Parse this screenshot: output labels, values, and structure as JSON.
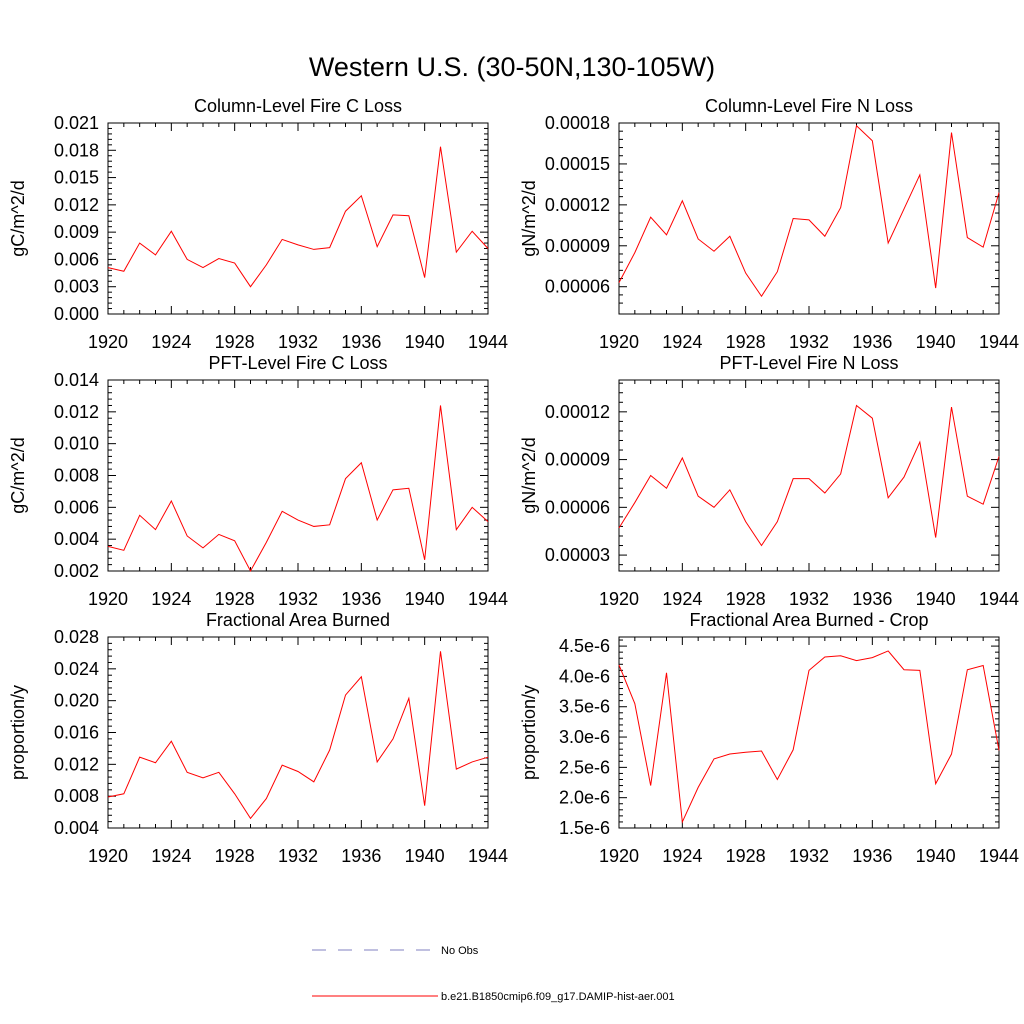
{
  "figure": {
    "title": "Western U.S. (30-50N,130-105W)"
  },
  "legend": {
    "items": [
      {
        "label": "No Obs",
        "color": "#8080c0",
        "dash": true
      },
      {
        "label": "b.e21.B1850cmip6.f09_g17.DAMIP-hist-aer.001",
        "color": "#ff0000",
        "dash": false
      }
    ]
  },
  "chart_data": [
    {
      "type": "line",
      "title": "Column-Level Fire C Loss",
      "ylabel": "gC/m^2/d",
      "xlabel": "",
      "xlim": [
        1920,
        1944
      ],
      "ylim": [
        0.0,
        0.021
      ],
      "xticks": [
        "1920",
        "1924",
        "1928",
        "1932",
        "1936",
        "1940",
        "1944"
      ],
      "yticks": [
        "0.000",
        "0.003",
        "0.006",
        "0.009",
        "0.012",
        "0.015",
        "0.018",
        "0.021"
      ],
      "x": [
        1920,
        1921,
        1922,
        1923,
        1924,
        1925,
        1926,
        1927,
        1928,
        1929,
        1930,
        1931,
        1932,
        1933,
        1934,
        1935,
        1936,
        1937,
        1938,
        1939,
        1940,
        1941,
        1942,
        1943,
        1944
      ],
      "series": [
        {
          "name": "b.e21.B1850cmip6.f09_g17.DAMIP-hist-aer.001",
          "color": "#ff0000",
          "values": [
            0.0051,
            0.0047,
            0.0078,
            0.0065,
            0.0091,
            0.006,
            0.0051,
            0.0061,
            0.0056,
            0.003,
            0.0054,
            0.0082,
            0.0076,
            0.0071,
            0.0073,
            0.0113,
            0.013,
            0.0074,
            0.0109,
            0.0108,
            0.004,
            0.0184,
            0.0068,
            0.0091,
            0.0072
          ]
        }
      ]
    },
    {
      "type": "line",
      "title": "Column-Level Fire N Loss",
      "ylabel": "gN/m^2/d",
      "xlabel": "",
      "xlim": [
        1920,
        1944
      ],
      "ylim": [
        4e-05,
        0.00018
      ],
      "xticks": [
        "1920",
        "1924",
        "1928",
        "1932",
        "1936",
        "1940",
        "1944"
      ],
      "yticks": [
        "0.00006",
        "0.00009",
        "0.00012",
        "0.00015",
        "0.00018"
      ],
      "x": [
        1920,
        1921,
        1922,
        1923,
        1924,
        1925,
        1926,
        1927,
        1928,
        1929,
        1930,
        1931,
        1932,
        1933,
        1934,
        1935,
        1936,
        1937,
        1938,
        1939,
        1940,
        1941,
        1942,
        1943,
        1944
      ],
      "series": [
        {
          "name": "b.e21.B1850cmip6.f09_g17.DAMIP-hist-aer.001",
          "color": "#ff0000",
          "values": [
            6.3e-05,
            8.5e-05,
            0.000111,
            9.8e-05,
            0.000123,
            9.5e-05,
            8.6e-05,
            9.7e-05,
            7e-05,
            5.3e-05,
            7.1e-05,
            0.00011,
            0.000109,
            9.7e-05,
            0.000118,
            0.000178,
            0.000167,
            9.2e-05,
            0.000117,
            0.000142,
            5.9e-05,
            0.000173,
            9.6e-05,
            8.9e-05,
            0.000129
          ]
        }
      ]
    },
    {
      "type": "line",
      "title": "PFT-Level Fire C Loss",
      "ylabel": "gC/m^2/d",
      "xlabel": "",
      "xlim": [
        1920,
        1944
      ],
      "ylim": [
        0.002,
        0.014
      ],
      "xticks": [
        "1920",
        "1924",
        "1928",
        "1932",
        "1936",
        "1940",
        "1944"
      ],
      "yticks": [
        "0.002",
        "0.004",
        "0.006",
        "0.008",
        "0.010",
        "0.012",
        "0.014"
      ],
      "x": [
        1920,
        1921,
        1922,
        1923,
        1924,
        1925,
        1926,
        1927,
        1928,
        1929,
        1930,
        1931,
        1932,
        1933,
        1934,
        1935,
        1936,
        1937,
        1938,
        1939,
        1940,
        1941,
        1942,
        1943,
        1944
      ],
      "series": [
        {
          "name": "b.e21.B1850cmip6.f09_g17.DAMIP-hist-aer.001",
          "color": "#ff0000",
          "values": [
            0.00355,
            0.0033,
            0.0055,
            0.0046,
            0.0064,
            0.0042,
            0.00345,
            0.0043,
            0.0039,
            0.002,
            0.0038,
            0.00575,
            0.0052,
            0.0048,
            0.0049,
            0.0078,
            0.0088,
            0.0052,
            0.0071,
            0.0072,
            0.0027,
            0.0124,
            0.0046,
            0.006,
            0.0051
          ]
        }
      ]
    },
    {
      "type": "line",
      "title": "PFT-Level Fire N Loss",
      "ylabel": "gN/m^2/d",
      "xlabel": "",
      "xlim": [
        1920,
        1944
      ],
      "ylim": [
        2e-05,
        0.00014
      ],
      "xticks": [
        "1920",
        "1924",
        "1928",
        "1932",
        "1936",
        "1940",
        "1944"
      ],
      "yticks": [
        "0.00003",
        "0.00006",
        "0.00009",
        "0.00012"
      ],
      "x": [
        1920,
        1921,
        1922,
        1923,
        1924,
        1925,
        1926,
        1927,
        1928,
        1929,
        1930,
        1931,
        1932,
        1933,
        1934,
        1935,
        1936,
        1937,
        1938,
        1939,
        1940,
        1941,
        1942,
        1943,
        1944
      ],
      "series": [
        {
          "name": "b.e21.B1850cmip6.f09_g17.DAMIP-hist-aer.001",
          "color": "#ff0000",
          "values": [
            4.7e-05,
            6.3e-05,
            8e-05,
            7.2e-05,
            9.1e-05,
            6.7e-05,
            6e-05,
            7.1e-05,
            5.1e-05,
            3.6e-05,
            5.1e-05,
            7.8e-05,
            7.8e-05,
            6.9e-05,
            8.1e-05,
            0.000124,
            0.000116,
            6.6e-05,
            7.9e-05,
            0.000101,
            4.1e-05,
            0.000123,
            6.7e-05,
            6.2e-05,
            9.2e-05
          ]
        }
      ]
    },
    {
      "type": "line",
      "title": "Fractional Area Burned",
      "ylabel": "proportion/y",
      "xlabel": "",
      "xlim": [
        1920,
        1944
      ],
      "ylim": [
        0.004,
        0.028
      ],
      "xticks": [
        "1920",
        "1924",
        "1928",
        "1932",
        "1936",
        "1940",
        "1944"
      ],
      "yticks": [
        "0.004",
        "0.008",
        "0.012",
        "0.016",
        "0.020",
        "0.024",
        "0.028"
      ],
      "x": [
        1920,
        1921,
        1922,
        1923,
        1924,
        1925,
        1926,
        1927,
        1928,
        1929,
        1930,
        1931,
        1932,
        1933,
        1934,
        1935,
        1936,
        1937,
        1938,
        1939,
        1940,
        1941,
        1942,
        1943,
        1944
      ],
      "series": [
        {
          "name": "b.e21.B1850cmip6.f09_g17.DAMIP-hist-aer.001",
          "color": "#ff0000",
          "values": [
            0.0079,
            0.0083,
            0.0129,
            0.0122,
            0.0149,
            0.011,
            0.0103,
            0.011,
            0.0083,
            0.0052,
            0.0077,
            0.0119,
            0.0111,
            0.0098,
            0.0138,
            0.0207,
            0.023,
            0.0123,
            0.0152,
            0.0203,
            0.0068,
            0.0262,
            0.0114,
            0.0123,
            0.0129
          ]
        }
      ]
    },
    {
      "type": "line",
      "title": "Fractional Area Burned - Crop",
      "ylabel": "proportion/y",
      "xlabel": "",
      "xlim": [
        1920,
        1944
      ],
      "ylim": [
        1.5e-06,
        4.65e-06
      ],
      "xticks": [
        "1920",
        "1924",
        "1928",
        "1932",
        "1936",
        "1940",
        "1944"
      ],
      "yticks": [
        "1.5e-6",
        "2.0e-6",
        "2.5e-6",
        "3.0e-6",
        "3.5e-6",
        "4.0e-6",
        "4.5e-6"
      ],
      "x": [
        1920,
        1921,
        1922,
        1923,
        1924,
        1925,
        1926,
        1927,
        1928,
        1929,
        1930,
        1931,
        1932,
        1933,
        1934,
        1935,
        1936,
        1937,
        1938,
        1939,
        1940,
        1941,
        1942,
        1943,
        1944
      ],
      "series": [
        {
          "name": "b.e21.B1850cmip6.f09_g17.DAMIP-hist-aer.001",
          "color": "#ff0000",
          "values": [
            4.19e-06,
            3.55e-06,
            2.2e-06,
            4.06e-06,
            1.6e-06,
            2.17e-06,
            2.64e-06,
            2.72e-06,
            2.75e-06,
            2.77e-06,
            2.3e-06,
            2.79e-06,
            4.1e-06,
            4.32e-06,
            4.34e-06,
            4.26e-06,
            4.31e-06,
            4.42e-06,
            4.11e-06,
            4.1e-06,
            2.23e-06,
            2.72e-06,
            4.11e-06,
            4.18e-06,
            2.78e-06
          ]
        }
      ]
    }
  ]
}
